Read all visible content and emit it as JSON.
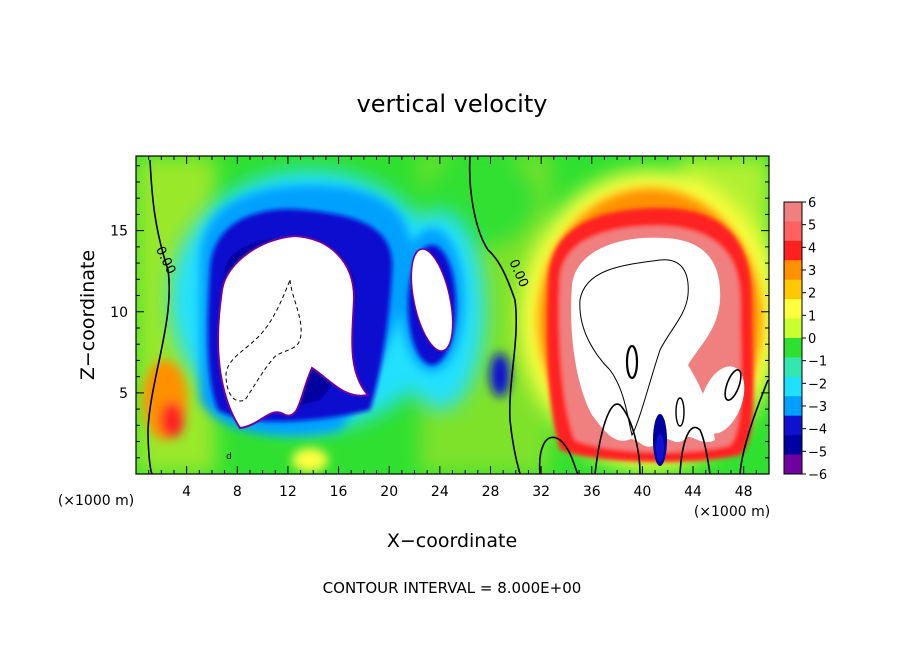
{
  "chart_data": {
    "type": "heatmap",
    "title": "vertical velocity",
    "xlabel": "X−coordinate",
    "ylabel": "Z−coordinate",
    "x_unit_label": "(×1000 m)",
    "x_unit_label_right": "(×1000 m)",
    "footer": "CONTOUR INTERVAL = 8.000E+00",
    "xlim": [
      0,
      50
    ],
    "ylim": [
      0,
      19.6
    ],
    "x_ticks": [
      4,
      8,
      12,
      16,
      20,
      24,
      28,
      32,
      36,
      40,
      44,
      48
    ],
    "x_tick_labels": [
      "4",
      "8",
      "12",
      "16",
      "20",
      "24",
      "28",
      "32",
      "36",
      "40",
      "44",
      "48"
    ],
    "y_ticks": [
      5,
      10,
      15
    ],
    "y_tick_labels": [
      "5",
      "10",
      "15"
    ],
    "colorbar": {
      "levels": [
        6,
        5,
        4,
        3,
        2,
        1,
        0,
        -1,
        -2,
        -3,
        -4,
        -5,
        -6
      ],
      "labels": [
        "6",
        "5",
        "4",
        "3",
        "2",
        "1",
        "0",
        "−1",
        "−2",
        "−3",
        "−4",
        "−5",
        "−6"
      ],
      "colors": [
        "#f08080",
        "#ff6060",
        "#ff2020",
        "#ff9000",
        "#ffc800",
        "#ffff40",
        "#c8ff30",
        "#30e030",
        "#30e8b0",
        "#20e0ff",
        "#00a0ff",
        "#1010d0",
        "#0000a0",
        "#7000a0"
      ]
    },
    "contour_labels": [
      "0.00",
      "0.00"
    ],
    "marker_label": "d",
    "features": [
      {
        "name": "downdraft-left",
        "x_range": [
          5,
          23
        ],
        "z_range": [
          1,
          18
        ],
        "min": -6
      },
      {
        "name": "downdraft-middle",
        "x_range": [
          20,
          26
        ],
        "z_range": [
          7,
          14
        ],
        "min": -6
      },
      {
        "name": "updraft-right",
        "x_range": [
          33,
          49
        ],
        "z_range": [
          1,
          17
        ],
        "max": 6
      },
      {
        "name": "positive-left-edge",
        "x_range": [
          0,
          4
        ],
        "z_range": [
          2,
          8
        ],
        "max": 4
      }
    ]
  }
}
